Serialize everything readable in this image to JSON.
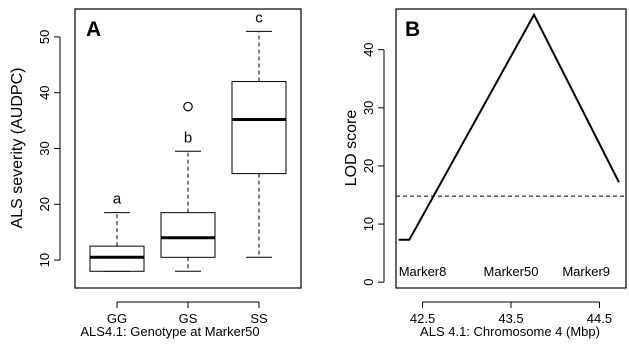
{
  "chart_data": [
    {
      "type": "box",
      "panel_label": "A",
      "ylabel": "ALS severity (AUDPC)",
      "xlabel": "ALS4.1: Genotype at Marker50",
      "ylim": [
        5,
        55
      ],
      "yticks": [
        10,
        20,
        30,
        40,
        50
      ],
      "categories": [
        "GG",
        "GS",
        "SS"
      ],
      "boxes": [
        {
          "name": "GG",
          "whisker_low": 8,
          "q1": 8,
          "median": 10.5,
          "q3": 12.5,
          "whisker_high": 18.5,
          "outliers": [],
          "group_letter": "a"
        },
        {
          "name": "GS",
          "whisker_low": 8,
          "q1": 10.5,
          "median": 14,
          "q3": 18.5,
          "whisker_high": 29.5,
          "outliers": [
            37.5
          ],
          "group_letter": "b"
        },
        {
          "name": "SS",
          "whisker_low": 10.5,
          "q1": 25.5,
          "median": 35.2,
          "q3": 42,
          "whisker_high": 51,
          "outliers": [],
          "group_letter": "c"
        }
      ],
      "grid": false
    },
    {
      "type": "line",
      "panel_label": "B",
      "ylabel": "LOD score",
      "xlabel": "ALS 4.1: Chromosome 4 (Mbp)",
      "xlim": [
        42.2,
        44.8
      ],
      "ylim": [
        -1,
        47
      ],
      "xticks": [
        42.5,
        43.5,
        44.5
      ],
      "xtick_labels": [
        "42.5",
        "43.5",
        "44.5"
      ],
      "yticks": [
        0,
        10,
        20,
        30,
        40
      ],
      "series": [
        {
          "x": [
            42.23,
            42.35,
            43.76,
            44.72
          ],
          "y": [
            7.3,
            7.3,
            46,
            17.2
          ]
        }
      ],
      "threshold": 14.8,
      "markers": [
        {
          "label": "Marker8",
          "x": 42.5
        },
        {
          "label": "Marker50",
          "x": 43.5
        },
        {
          "label": "Marker9",
          "x": 44.35
        }
      ],
      "grid": false
    }
  ]
}
